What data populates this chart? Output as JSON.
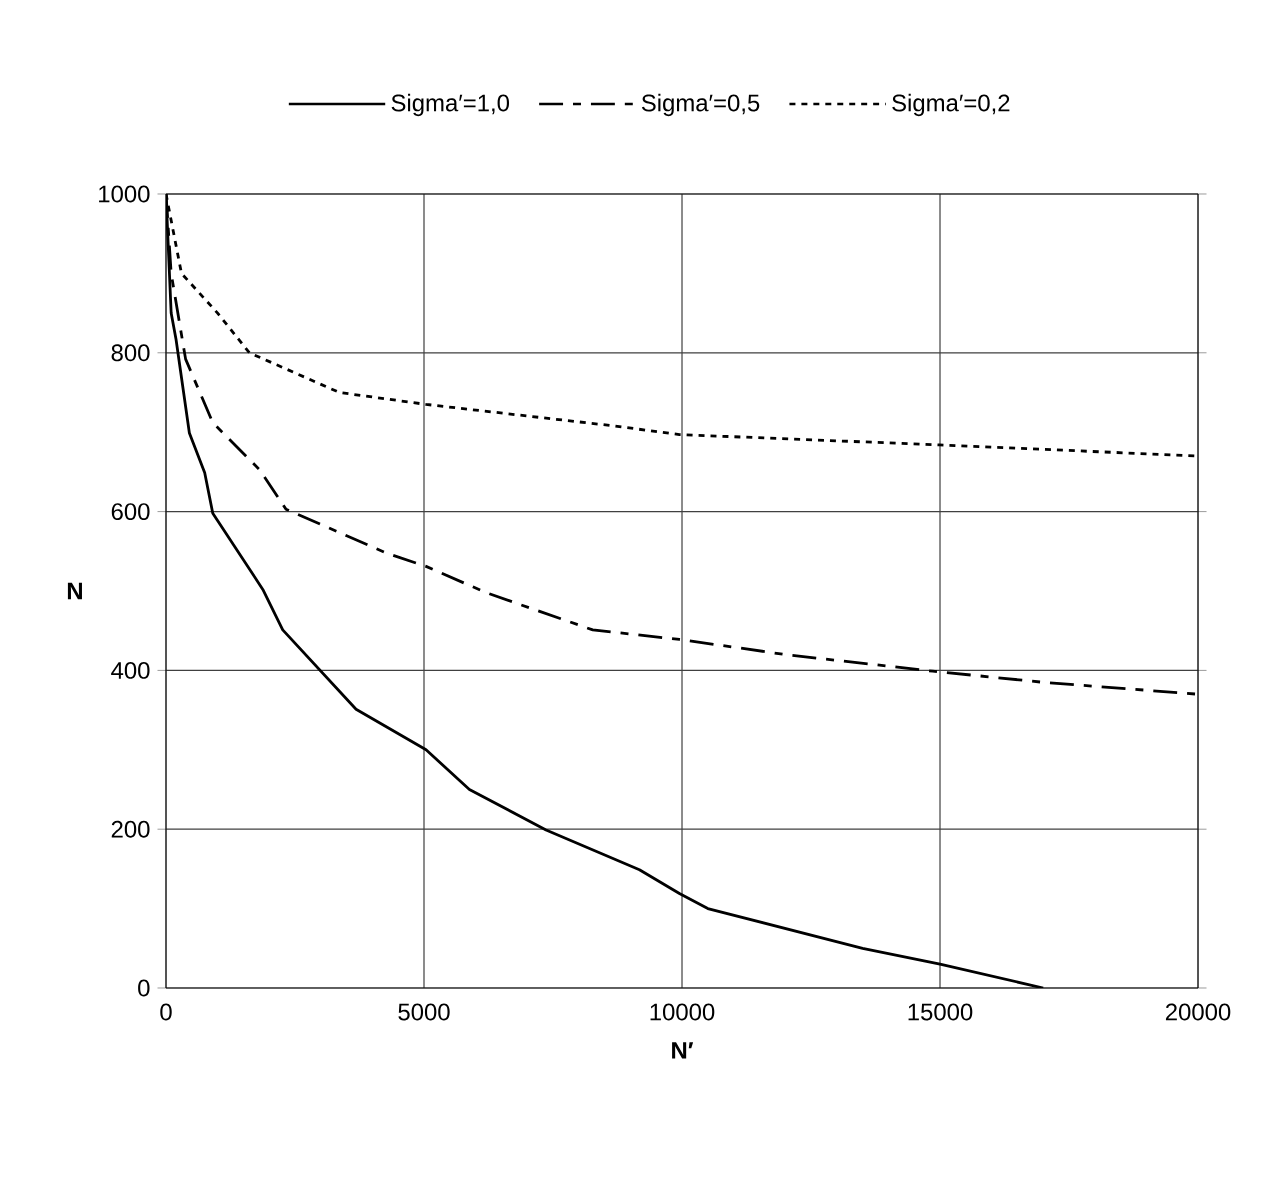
{
  "chart_data": {
    "type": "line",
    "xlabel": "N′",
    "ylabel": "N",
    "xlim": [
      0,
      20000
    ],
    "ylim": [
      0,
      1000
    ],
    "xticks": [
      0,
      5000,
      10000,
      15000,
      20000
    ],
    "yticks": [
      0,
      200,
      400,
      600,
      800,
      1000
    ],
    "grid": true,
    "legend": "top",
    "series": [
      {
        "name": "Sigma′=1,0",
        "color": "#000000",
        "line_style": "solid",
        "x": [
          0,
          100,
          194,
          453,
          750,
          906,
          1876,
          2262,
          3683,
          5040,
          5880,
          7365,
          9175,
          9950,
          10500,
          13500,
          15000,
          17000
        ],
        "values": [
          1000,
          850,
          817,
          699,
          649,
          598,
          502,
          451,
          351,
          300,
          250,
          199,
          149,
          119,
          100,
          50,
          30,
          0
        ]
      },
      {
        "name": "Sigma′=0,5",
        "color": "#000000",
        "line_style": "dashed",
        "x": [
          0,
          100,
          380,
          906,
          1810,
          2326,
          4264,
          5040,
          6200,
          8270,
          9950,
          12000,
          14860,
          17000,
          20000
        ],
        "values": [
          1000,
          900,
          792,
          712,
          653,
          603,
          548,
          531,
          498,
          451,
          439,
          420,
          399,
          385,
          370
        ]
      },
      {
        "name": "Sigma′=0,2",
        "color": "#000000",
        "line_style": "dotted",
        "x": [
          0,
          300,
          1000,
          1616,
          3360,
          5040,
          8670,
          9950,
          14990,
          20000
        ],
        "values": [
          1000,
          900,
          850,
          800,
          750,
          735,
          708,
          697,
          684,
          670
        ]
      }
    ]
  }
}
